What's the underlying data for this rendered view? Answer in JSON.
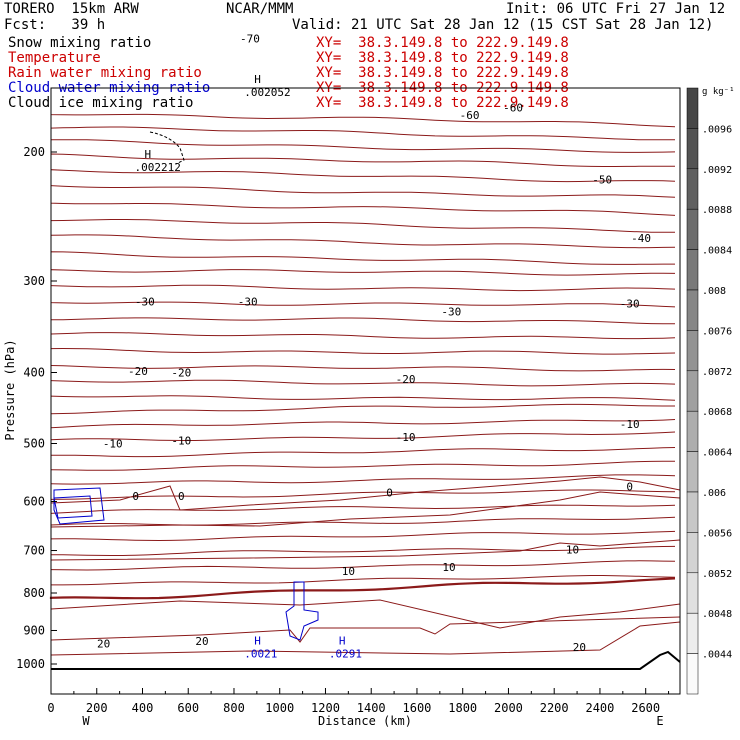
{
  "header": {
    "model": "TORERO  15km ARW",
    "org": "NCAR/MMM",
    "init": "Init: 06 UTC Fri 27 Jan 12",
    "fcst": "Fcst:   39 h",
    "valid": "Valid: 21 UTC Sat 28 Jan 12 (15 CST Sat 28 Jan 12)",
    "fields": [
      {
        "label": "Snow mixing ratio",
        "xy": "XY=  38.3.149.8 to 222.9.149.8",
        "color": "#000000"
      },
      {
        "label": "Temperature",
        "xy": "XY=  38.3.149.8 to 222.9.149.8",
        "color": "#cc0000"
      },
      {
        "label": "Rain water mixing ratio",
        "xy": "XY=  38.3.149.8 to 222.9.149.8",
        "color": "#cc0000"
      },
      {
        "label": "Cloud water mixing ratio",
        "xy": "XY=  38.3.149.8 to 222.9.149.8",
        "color": "#0000cc"
      },
      {
        "label": "Cloud ice mixing ratio",
        "xy": "XY=  38.3.149.8 to 222.9.149.8",
        "color": "#000000"
      }
    ]
  },
  "chart_data": {
    "type": "contour",
    "xlabel": "Distance (km)",
    "ylabel": "Pressure (hPa)",
    "xlim": [
      0,
      2750
    ],
    "ylim": [
      1050,
      100
    ],
    "y_scale": "log",
    "x_ticks": [
      "0",
      "200",
      "400",
      "600",
      "800",
      "1000",
      "1200",
      "1400",
      "1600",
      "1800",
      "2000",
      "2200",
      "2400",
      "2600"
    ],
    "y_ticks": [
      "200",
      "300",
      "400",
      "500",
      "600",
      "700",
      "800",
      "900",
      "1000"
    ],
    "x_end_labels": {
      "left": "W",
      "right": "E"
    },
    "temperature_labels": [
      {
        "text": "-70",
        "x": 870,
        "p": 140
      },
      {
        "text": "-60",
        "x": 1830,
        "p": 178
      },
      {
        "text": "-60",
        "x": 2020,
        "p": 174
      },
      {
        "text": "-50",
        "x": 2410,
        "p": 218
      },
      {
        "text": "-40",
        "x": 2580,
        "p": 262
      },
      {
        "text": "-30",
        "x": 410,
        "p": 320
      },
      {
        "text": "-30",
        "x": 860,
        "p": 320
      },
      {
        "text": "-30",
        "x": 1750,
        "p": 330
      },
      {
        "text": "-30",
        "x": 2530,
        "p": 322
      },
      {
        "text": "-20",
        "x": 380,
        "p": 398
      },
      {
        "text": "-20",
        "x": 570,
        "p": 400
      },
      {
        "text": "-20",
        "x": 1550,
        "p": 408
      },
      {
        "text": "-10",
        "x": 270,
        "p": 500
      },
      {
        "text": "-10",
        "x": 570,
        "p": 495
      },
      {
        "text": "-10",
        "x": 1550,
        "p": 490
      },
      {
        "text": "-10",
        "x": 2530,
        "p": 470
      },
      {
        "text": "0",
        "x": 370,
        "p": 590
      },
      {
        "text": "0",
        "x": 570,
        "p": 590
      },
      {
        "text": "0",
        "x": 1480,
        "p": 583
      },
      {
        "text": "0",
        "x": 2530,
        "p": 572
      },
      {
        "text": "10",
        "x": 2280,
        "p": 698
      },
      {
        "text": "10",
        "x": 1740,
        "p": 737
      },
      {
        "text": "10",
        "x": 1300,
        "p": 746
      },
      {
        "text": "20",
        "x": 230,
        "p": 937
      },
      {
        "text": "20",
        "x": 660,
        "p": 930
      },
      {
        "text": "20",
        "x": 2310,
        "p": 948
      }
    ],
    "extrema_labels": [
      {
        "text": "H",
        "value": ".002052",
        "x": 880,
        "p": 162
      },
      {
        "text": "H",
        "value": ".002212",
        "x": 400,
        "p": 205
      },
      {
        "text": "H",
        "value": ".0021",
        "x": 880,
        "p": 946
      },
      {
        "text": "H",
        "value": ".0291",
        "x": 1250,
        "p": 946
      }
    ],
    "colorbar": {
      "unit": "g kg⁻¹",
      "labels": [
        ".0096",
        ".0092",
        ".0088",
        ".0084",
        ".008",
        ".0076",
        ".0072",
        ".0068",
        ".0064",
        ".006",
        ".0056",
        ".0052",
        ".0048",
        ".0044"
      ]
    }
  },
  "colors": {
    "temperature": "#8b1a1a",
    "cloud_water": "#0000cc",
    "text_red": "#cc0000"
  }
}
